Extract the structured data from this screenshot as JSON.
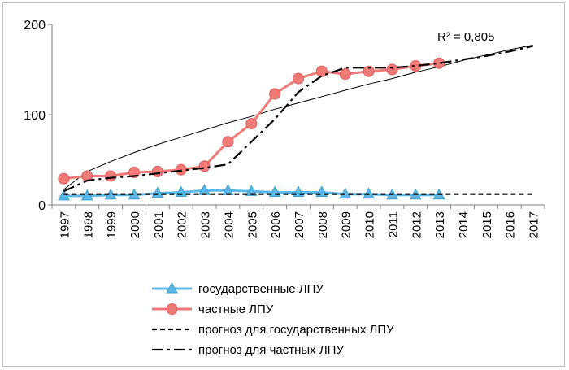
{
  "chart_data": {
    "type": "line",
    "x": [
      "1997",
      "1998",
      "1999",
      "2000",
      "2001",
      "2002",
      "2003",
      "2004",
      "2005",
      "2006",
      "2007",
      "2008",
      "2009",
      "2010",
      "2011",
      "2012",
      "2013",
      "2014",
      "2015",
      "2016",
      "2017"
    ],
    "ylim": [
      0,
      200
    ],
    "yticks": [
      "0",
      "100",
      "200"
    ],
    "grid": false,
    "legend_position": "bottom",
    "annotation": "R² = 0,805",
    "series": [
      {
        "name": "государственные ЛПУ",
        "style": "line-marker-triangle",
        "color": "#5cb8e6",
        "values": [
          10,
          10,
          11,
          11,
          13,
          14,
          16,
          16,
          15,
          14,
          14,
          14,
          12,
          12,
          11,
          11,
          11,
          null,
          null,
          null,
          null
        ]
      },
      {
        "name": "частные ЛПУ",
        "style": "line-marker-circle",
        "color": "#f07a78",
        "values": [
          29,
          32,
          32,
          36,
          37,
          39,
          43,
          70,
          90,
          123,
          140,
          148,
          145,
          148,
          150,
          154,
          157,
          null,
          null,
          null,
          null
        ]
      },
      {
        "name": "прогноз для государственных ЛПУ",
        "style": "dashed",
        "color": "#000000",
        "values": [
          12,
          12,
          12,
          12,
          12,
          12,
          12,
          12,
          12,
          12,
          12,
          12,
          12,
          12,
          12,
          12,
          12,
          12,
          12,
          12,
          12
        ]
      },
      {
        "name": "прогноз для частных ЛПУ",
        "style": "dash-dot",
        "color": "#000000",
        "values": [
          15,
          27,
          30,
          32,
          35,
          38,
          41,
          45,
          70,
          95,
          125,
          143,
          152,
          152,
          152,
          154,
          157,
          161,
          165,
          170,
          176
        ]
      }
    ],
    "trendline": {
      "style": "solid-thin",
      "color": "#000000",
      "values": [
        17,
        37,
        48,
        58,
        67,
        75,
        83,
        91,
        98,
        106,
        113,
        120,
        127,
        134,
        140,
        147,
        153,
        160,
        166,
        172,
        177
      ]
    }
  }
}
